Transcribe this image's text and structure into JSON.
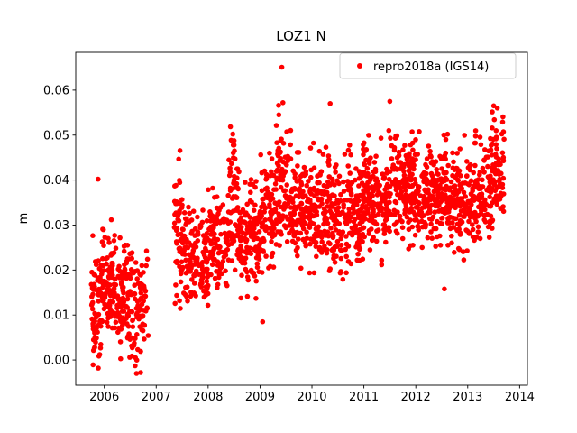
{
  "figure": {
    "title": "LOZ1 N"
  },
  "legend": {
    "label": "repro2018a (IGS14)",
    "marker_color": "#ff0000"
  },
  "chart_data": {
    "type": "scatter",
    "title": "LOZ1 N",
    "xlabel": "",
    "ylabel": "m",
    "xlim": [
      2005.45,
      2014.15
    ],
    "ylim": [
      -0.0056,
      0.0684
    ],
    "x_ticks": [
      2006,
      2007,
      2008,
      2009,
      2010,
      2011,
      2012,
      2013,
      2014
    ],
    "y_ticks": [
      0.0,
      0.01,
      0.02,
      0.03,
      0.04,
      0.05,
      0.06
    ],
    "grid": false,
    "legend_position": "upper right",
    "seed": 42,
    "series": [
      {
        "name": "repro2018a (IGS14)",
        "color": "#ff0000",
        "marker": "o",
        "marker_radius_px": 2.8,
        "segments": [
          {
            "x0": 2005.75,
            "x1": 2005.95,
            "n": 70,
            "mean": 0.012,
            "std": 0.0075,
            "min": -0.002,
            "max": 0.031
          },
          {
            "x0": 2005.95,
            "x1": 2006.2,
            "n": 90,
            "mean": 0.017,
            "std": 0.006,
            "min": 0.002,
            "max": 0.032
          },
          {
            "x0": 2006.2,
            "x1": 2006.45,
            "n": 75,
            "mean": 0.015,
            "std": 0.0065,
            "min": 0.0,
            "max": 0.03
          },
          {
            "x0": 2006.45,
            "x1": 2006.65,
            "n": 55,
            "mean": 0.01,
            "std": 0.007,
            "min": -0.003,
            "max": 0.024
          },
          {
            "x0": 2006.65,
            "x1": 2006.85,
            "n": 45,
            "mean": 0.014,
            "std": 0.0065,
            "min": -0.002,
            "max": 0.03
          },
          {
            "x0": 2007.35,
            "x1": 2007.55,
            "n": 60,
            "mean": 0.028,
            "std": 0.01,
            "min": 0.011,
            "max": 0.05
          },
          {
            "x0": 2007.55,
            "x1": 2008.0,
            "n": 130,
            "mean": 0.022,
            "std": 0.005,
            "min": 0.012,
            "max": 0.036
          },
          {
            "x0": 2008.0,
            "x1": 2008.38,
            "n": 100,
            "mean": 0.026,
            "std": 0.0055,
            "min": 0.015,
            "max": 0.041
          },
          {
            "x0": 2008.38,
            "x1": 2008.6,
            "n": 70,
            "mean": 0.034,
            "std": 0.009,
            "min": 0.019,
            "max": 0.054
          },
          {
            "x0": 2008.6,
            "x1": 2009.0,
            "n": 120,
            "mean": 0.027,
            "std": 0.006,
            "min": 0.009,
            "max": 0.043
          },
          {
            "x0": 2009.0,
            "x1": 2009.3,
            "n": 90,
            "mean": 0.033,
            "std": 0.006,
            "min": 0.019,
            "max": 0.049
          },
          {
            "x0": 2009.3,
            "x1": 2009.6,
            "n": 90,
            "mean": 0.04,
            "std": 0.0075,
            "min": 0.024,
            "max": 0.058
          },
          {
            "x0": 2009.6,
            "x1": 2010.0,
            "n": 120,
            "mean": 0.033,
            "std": 0.006,
            "min": 0.019,
            "max": 0.051
          },
          {
            "x0": 2010.0,
            "x1": 2010.5,
            "n": 150,
            "mean": 0.033,
            "std": 0.0065,
            "min": 0.017,
            "max": 0.056
          },
          {
            "x0": 2010.5,
            "x1": 2011.0,
            "n": 150,
            "mean": 0.032,
            "std": 0.006,
            "min": 0.015,
            "max": 0.048
          },
          {
            "x0": 2011.0,
            "x1": 2011.5,
            "n": 150,
            "mean": 0.036,
            "std": 0.006,
            "min": 0.02,
            "max": 0.053
          },
          {
            "x0": 2011.5,
            "x1": 2012.0,
            "n": 150,
            "mean": 0.038,
            "std": 0.006,
            "min": 0.022,
            "max": 0.055
          },
          {
            "x0": 2012.0,
            "x1": 2012.5,
            "n": 150,
            "mean": 0.037,
            "std": 0.005,
            "min": 0.024,
            "max": 0.051
          },
          {
            "x0": 2012.5,
            "x1": 2013.0,
            "n": 150,
            "mean": 0.036,
            "std": 0.0055,
            "min": 0.021,
            "max": 0.051
          },
          {
            "x0": 2013.0,
            "x1": 2013.45,
            "n": 130,
            "mean": 0.038,
            "std": 0.0055,
            "min": 0.023,
            "max": 0.053
          },
          {
            "x0": 2013.45,
            "x1": 2013.7,
            "n": 80,
            "mean": 0.042,
            "std": 0.006,
            "min": 0.028,
            "max": 0.057
          }
        ],
        "outliers": [
          [
            2005.88,
            0.0402
          ],
          [
            2009.42,
            0.0651
          ],
          [
            2009.05,
            0.0085
          ],
          [
            2012.55,
            0.0158
          ],
          [
            2010.35,
            0.057
          ],
          [
            2011.5,
            0.0575
          ],
          [
            2013.5,
            0.0565
          ],
          [
            2013.57,
            0.056
          ],
          [
            2006.62,
            -0.003
          ],
          [
            2006.7,
            -0.0028
          ]
        ]
      }
    ]
  }
}
